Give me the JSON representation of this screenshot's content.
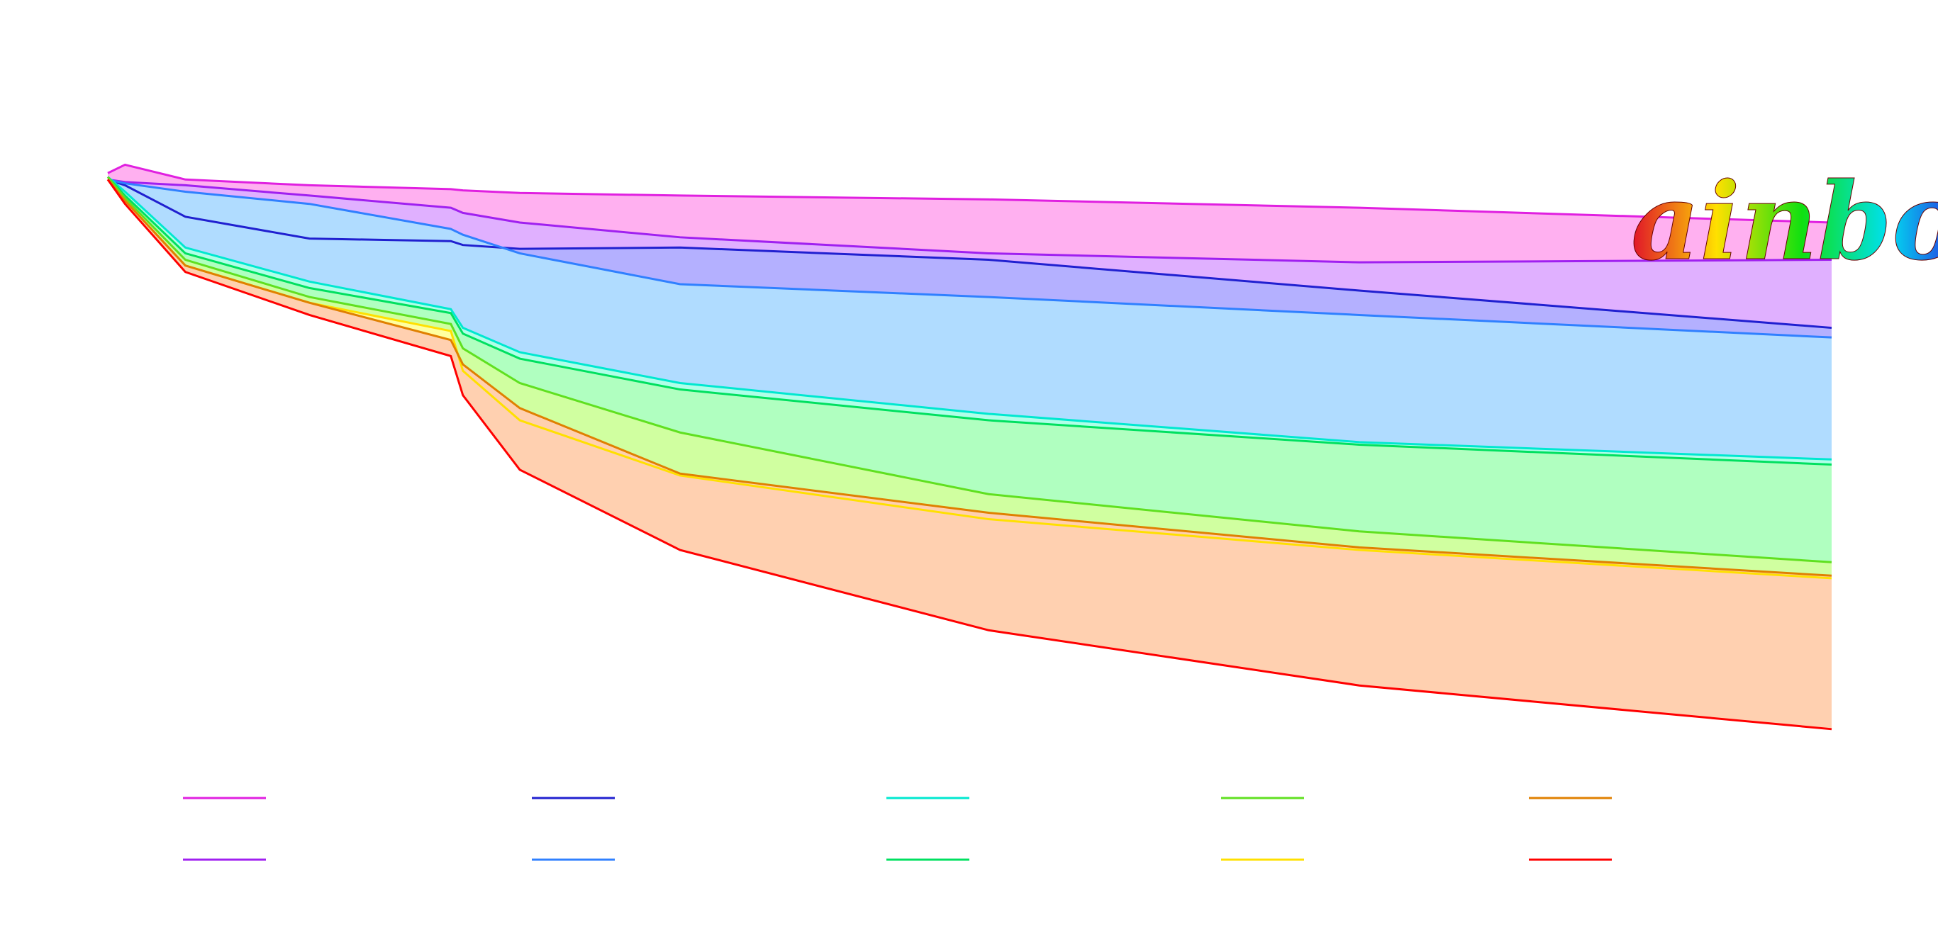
{
  "chart_data": {
    "type": "area",
    "annotation": "ainbow",
    "x": [
      0,
      1,
      4.5,
      11.7,
      19.9,
      20.6,
      23.9,
      33.2,
      51.1,
      72.6,
      100
    ],
    "xlim": [
      0,
      100
    ],
    "ylim": [
      0,
      100
    ],
    "series": [
      {
        "color": "#e020e0",
        "fill": "#ffb0f0",
        "values": [
          98.1,
          99.4,
          97.1,
          96.2,
          95.6,
          95.4,
          95.0,
          94.6,
          94.0,
          92.7,
          90.4
        ]
      },
      {
        "color": "#a020f0",
        "fill": "#e0b0ff",
        "values": [
          97.1,
          96.7,
          96.2,
          94.6,
          92.7,
          91.9,
          90.4,
          88.1,
          85.6,
          84.2,
          84.6
        ]
      },
      {
        "color": "#2020d0",
        "fill": "#b4b0ff",
        "values": [
          97.1,
          96.2,
          91.3,
          87.9,
          87.5,
          86.9,
          86.3,
          86.5,
          84.6,
          79.8,
          74.0
        ]
      },
      {
        "color": "#3080ff",
        "fill": "#b0dcff",
        "values": [
          97.1,
          96.5,
          95.2,
          93.3,
          89.4,
          88.5,
          85.6,
          80.8,
          78.8,
          76.0,
          72.5
        ]
      },
      {
        "color": "#00e8d0",
        "fill": "#b0ffe8",
        "values": [
          97.5,
          95.2,
          86.5,
          81.2,
          76.9,
          74.0,
          70.2,
          65.4,
          60.6,
          56.2,
          53.5
        ]
      },
      {
        "color": "#00e060",
        "fill": "#b0ffc0",
        "values": [
          97.5,
          94.6,
          85.6,
          80.2,
          76.3,
          73.1,
          69.2,
          64.4,
          59.6,
          55.8,
          52.7
        ]
      },
      {
        "color": "#60e020",
        "fill": "#d0ffa0",
        "values": [
          97.5,
          94.2,
          84.6,
          78.8,
          74.6,
          70.8,
          65.4,
          57.7,
          48.1,
          42.3,
          37.5
        ]
      },
      {
        "color": "#ffe000",
        "fill": "#ffffa0",
        "values": [
          97.1,
          93.8,
          83.7,
          77.9,
          73.5,
          67.3,
          59.6,
          51.0,
          44.2,
          39.4,
          35.0
        ]
      },
      {
        "color": "#e08000",
        "fill": "#ffd0b0",
        "values": [
          97.1,
          93.8,
          83.7,
          77.9,
          72.1,
          68.3,
          61.5,
          51.3,
          45.2,
          39.8,
          35.4
        ]
      },
      {
        "color": "#ff0000",
        "values": [
          97.1,
          93.3,
          82.7,
          76.0,
          69.6,
          63.5,
          51.9,
          39.4,
          26.9,
          18.3,
          11.5
        ]
      }
    ]
  }
}
